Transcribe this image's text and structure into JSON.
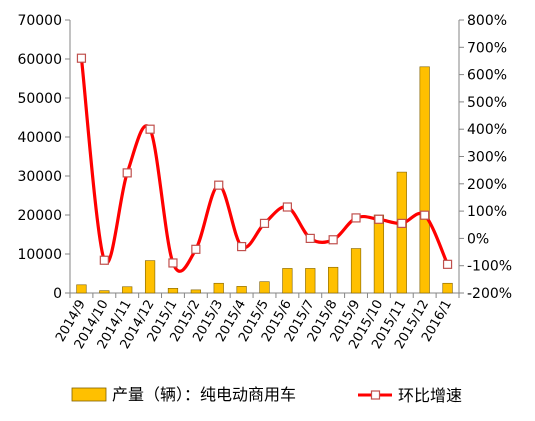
{
  "chart_data": {
    "type": "bar",
    "categories": [
      "2014/9",
      "2014/10",
      "2014/11",
      "2014/12",
      "2015/1",
      "2015/2",
      "2015/3",
      "2015/4",
      "2015/5",
      "2015/6",
      "2015/7",
      "2015/8",
      "2015/9",
      "2015/10",
      "2015/11",
      "2015/12",
      "2016/1"
    ],
    "series": [
      {
        "name": "产量（辆）：纯电动商用车",
        "type": "bar",
        "axis": "left",
        "color": "#FFC000",
        "values": [
          2100,
          600,
          1600,
          8300,
          1200,
          800,
          2500,
          1700,
          2900,
          6300,
          6300,
          6600,
          11400,
          20000,
          31000,
          58000,
          2500
        ]
      },
      {
        "name": "环比增速",
        "type": "line",
        "axis": "right",
        "color": "#FF0000",
        "values": [
          660,
          -80,
          240,
          400,
          -90,
          -40,
          195,
          -30,
          55,
          115,
          0,
          -5,
          75,
          70,
          55,
          85,
          -95
        ]
      }
    ],
    "yleft": {
      "min": 0,
      "max": 70000,
      "step": 10000,
      "ticks": [
        "0",
        "10000",
        "20000",
        "30000",
        "40000",
        "50000",
        "60000",
        "70000"
      ]
    },
    "yright": {
      "min": -200,
      "max": 800,
      "step": 100,
      "ticks": [
        "-200%",
        "-100%",
        "0%",
        "100%",
        "200%",
        "300%",
        "400%",
        "500%",
        "600%",
        "700%",
        "800%"
      ]
    },
    "legend": {
      "position": "bottom",
      "bar_label": "产量（辆）：纯电动商用车",
      "line_label": "环比增速"
    },
    "grid": false
  }
}
